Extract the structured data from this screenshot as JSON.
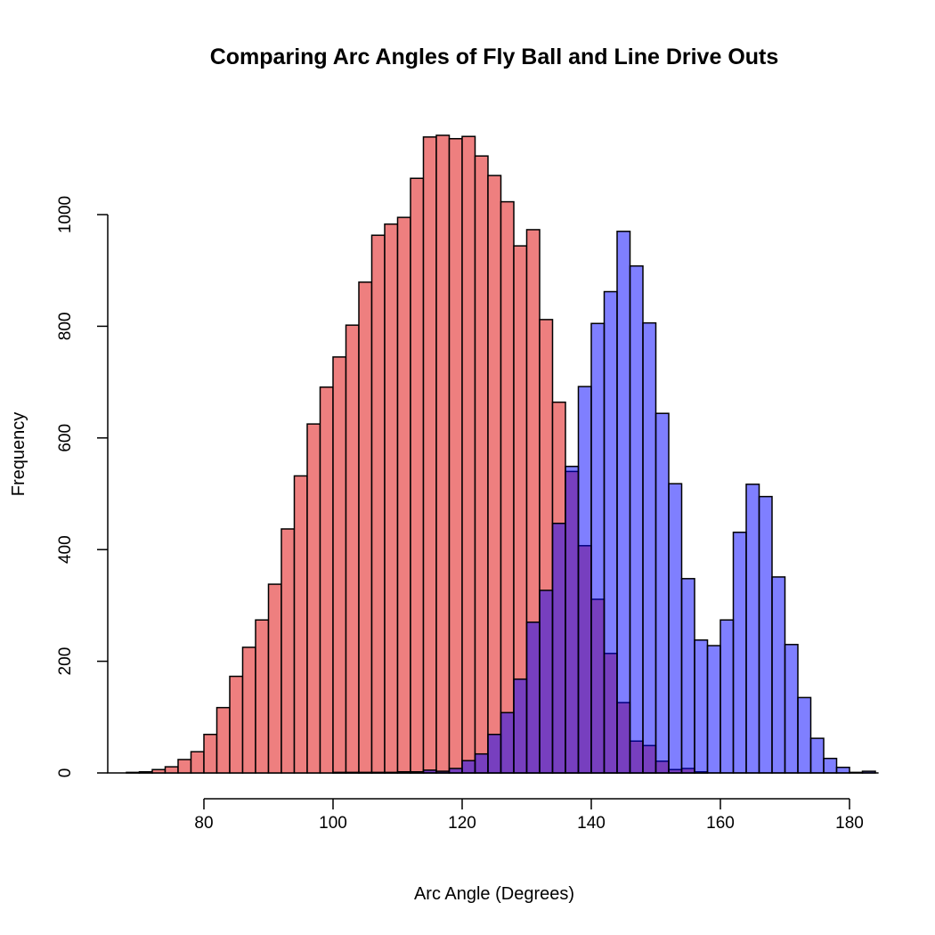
{
  "chart_data": {
    "type": "histogram",
    "title": "Comparing Arc Angles of Fly Ball and Line Drive Outs",
    "xlabel": "Arc Angle (Degrees)",
    "ylabel": "Frequency",
    "bin_width": 2,
    "x_ticks": [
      "80",
      "100",
      "120",
      "140",
      "160",
      "180"
    ],
    "y_ticks": [
      "0",
      "200",
      "400",
      "600",
      "800",
      "1000"
    ],
    "x_tick_values": [
      80,
      100,
      120,
      140,
      160,
      180
    ],
    "y_tick_values": [
      0,
      200,
      400,
      600,
      800,
      1000
    ],
    "grid": false,
    "legend": "none",
    "series": [
      {
        "color": "#EE7F7F",
        "opacity": 1,
        "bin_starts": [
          68,
          70,
          72,
          74,
          76,
          78,
          80,
          82,
          84,
          86,
          88,
          90,
          92,
          94,
          96,
          98,
          100,
          102,
          104,
          106,
          108,
          110,
          112,
          114,
          116,
          118,
          120,
          122,
          124,
          126,
          128,
          130,
          132,
          134,
          136,
          138,
          140,
          142,
          144,
          146,
          148,
          150,
          152,
          154,
          156
        ],
        "counts": [
          1,
          2,
          6,
          11,
          24,
          38,
          69,
          117,
          173,
          225,
          274,
          338,
          437,
          532,
          625,
          691,
          745,
          802,
          879,
          963,
          983,
          995,
          1065,
          1139,
          1142,
          1136,
          1140,
          1105,
          1070,
          1023,
          944,
          973,
          812,
          664,
          540,
          407,
          311,
          214,
          126,
          57,
          49,
          21,
          6,
          8,
          2
        ]
      },
      {
        "color": "#0000FF",
        "opacity": 0.5,
        "bin_starts": [
          100,
          102,
          104,
          106,
          108,
          110,
          112,
          114,
          116,
          118,
          120,
          122,
          124,
          126,
          128,
          130,
          132,
          134,
          136,
          138,
          140,
          142,
          144,
          146,
          148,
          150,
          152,
          154,
          156,
          158,
          160,
          162,
          164,
          166,
          168,
          170,
          172,
          174,
          176,
          178,
          180,
          182
        ],
        "counts": [
          1,
          1,
          1,
          1,
          1,
          2,
          2,
          5,
          3,
          8,
          22,
          34,
          69,
          108,
          168,
          270,
          327,
          447,
          549,
          692,
          805,
          862,
          970,
          908,
          806,
          644,
          518,
          348,
          238,
          228,
          274,
          431,
          517,
          495,
          351,
          230,
          135,
          62,
          26,
          10,
          1,
          3
        ]
      }
    ]
  }
}
